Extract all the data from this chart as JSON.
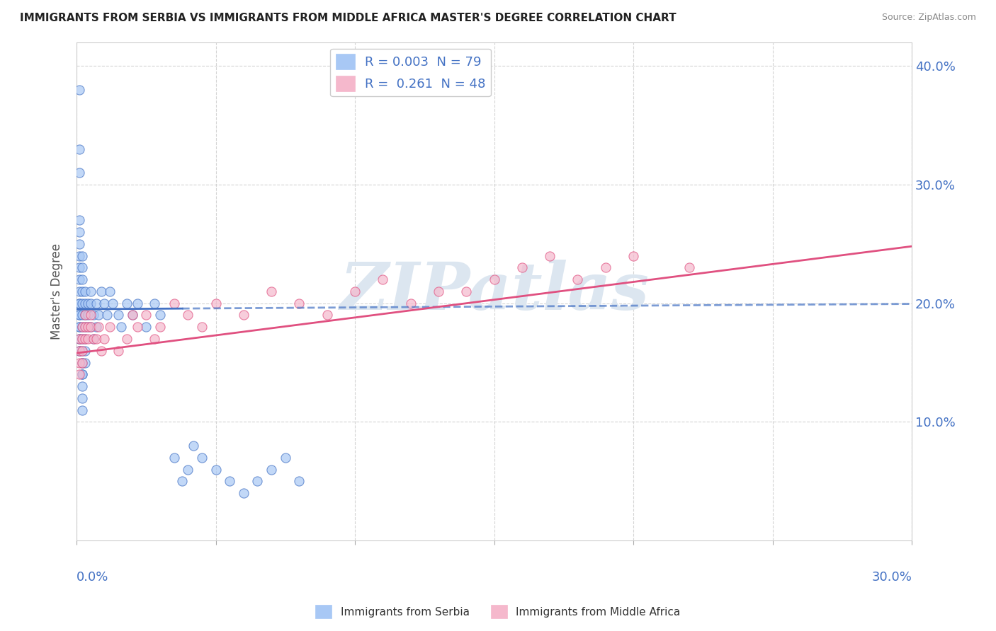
{
  "title": "IMMIGRANTS FROM SERBIA VS IMMIGRANTS FROM MIDDLE AFRICA MASTER'S DEGREE CORRELATION CHART",
  "source": "Source: ZipAtlas.com",
  "ylabel": "Master's Degree",
  "xlim": [
    0.0,
    0.3
  ],
  "ylim": [
    0.0,
    0.42
  ],
  "legend_serbia": "R = 0.003  N = 79",
  "legend_africa": "R =  0.261  N = 48",
  "color_serbia": "#a8c8f5",
  "color_africa": "#f5b8cc",
  "color_serbia_line": "#4472c4",
  "color_africa_line": "#e05080",
  "regression_serbia_slope": 0.015,
  "regression_serbia_intercept": 0.195,
  "regression_africa_slope": 0.3,
  "regression_africa_intercept": 0.158,
  "background_color": "#ffffff",
  "grid_color": "#d0d0d0",
  "title_color": "#222222",
  "tick_label_color": "#4472c4",
  "watermark_color": "#dce6f0",
  "watermark_text": "ZIPatlas",
  "serbia_x": [
    0.001,
    0.001,
    0.001,
    0.001,
    0.001,
    0.001,
    0.001,
    0.001,
    0.001,
    0.001,
    0.001,
    0.001,
    0.001,
    0.001,
    0.001,
    0.001,
    0.001,
    0.001,
    0.001,
    0.001,
    0.002,
    0.002,
    0.002,
    0.002,
    0.002,
    0.002,
    0.002,
    0.002,
    0.002,
    0.002,
    0.002,
    0.002,
    0.002,
    0.002,
    0.002,
    0.002,
    0.003,
    0.003,
    0.003,
    0.003,
    0.003,
    0.003,
    0.003,
    0.004,
    0.004,
    0.004,
    0.005,
    0.005,
    0.005,
    0.006,
    0.006,
    0.007,
    0.007,
    0.008,
    0.009,
    0.01,
    0.011,
    0.012,
    0.013,
    0.015,
    0.016,
    0.018,
    0.02,
    0.022,
    0.025,
    0.028,
    0.03,
    0.035,
    0.04,
    0.038,
    0.042,
    0.045,
    0.05,
    0.055,
    0.06,
    0.065,
    0.07,
    0.075,
    0.08
  ],
  "serbia_y": [
    0.38,
    0.33,
    0.31,
    0.27,
    0.26,
    0.25,
    0.24,
    0.23,
    0.22,
    0.21,
    0.2,
    0.2,
    0.19,
    0.19,
    0.18,
    0.18,
    0.17,
    0.17,
    0.16,
    0.16,
    0.24,
    0.23,
    0.22,
    0.21,
    0.2,
    0.19,
    0.18,
    0.17,
    0.16,
    0.15,
    0.15,
    0.14,
    0.14,
    0.13,
    0.12,
    0.11,
    0.21,
    0.2,
    0.19,
    0.18,
    0.17,
    0.16,
    0.15,
    0.2,
    0.19,
    0.18,
    0.21,
    0.2,
    0.18,
    0.19,
    0.17,
    0.2,
    0.18,
    0.19,
    0.21,
    0.2,
    0.19,
    0.21,
    0.2,
    0.19,
    0.18,
    0.2,
    0.19,
    0.2,
    0.18,
    0.2,
    0.19,
    0.07,
    0.06,
    0.05,
    0.08,
    0.07,
    0.06,
    0.05,
    0.04,
    0.05,
    0.06,
    0.07,
    0.05
  ],
  "africa_x": [
    0.001,
    0.001,
    0.001,
    0.001,
    0.002,
    0.002,
    0.002,
    0.002,
    0.003,
    0.003,
    0.003,
    0.004,
    0.004,
    0.005,
    0.005,
    0.006,
    0.007,
    0.008,
    0.009,
    0.01,
    0.012,
    0.015,
    0.018,
    0.02,
    0.022,
    0.025,
    0.028,
    0.03,
    0.035,
    0.04,
    0.045,
    0.05,
    0.06,
    0.07,
    0.08,
    0.09,
    0.1,
    0.11,
    0.12,
    0.13,
    0.14,
    0.15,
    0.16,
    0.17,
    0.18,
    0.19,
    0.2,
    0.22
  ],
  "africa_y": [
    0.17,
    0.16,
    0.15,
    0.14,
    0.18,
    0.17,
    0.16,
    0.15,
    0.19,
    0.18,
    0.17,
    0.18,
    0.17,
    0.19,
    0.18,
    0.17,
    0.17,
    0.18,
    0.16,
    0.17,
    0.18,
    0.16,
    0.17,
    0.19,
    0.18,
    0.19,
    0.17,
    0.18,
    0.2,
    0.19,
    0.18,
    0.2,
    0.19,
    0.21,
    0.2,
    0.19,
    0.21,
    0.22,
    0.2,
    0.21,
    0.21,
    0.22,
    0.23,
    0.24,
    0.22,
    0.23,
    0.24,
    0.23
  ]
}
